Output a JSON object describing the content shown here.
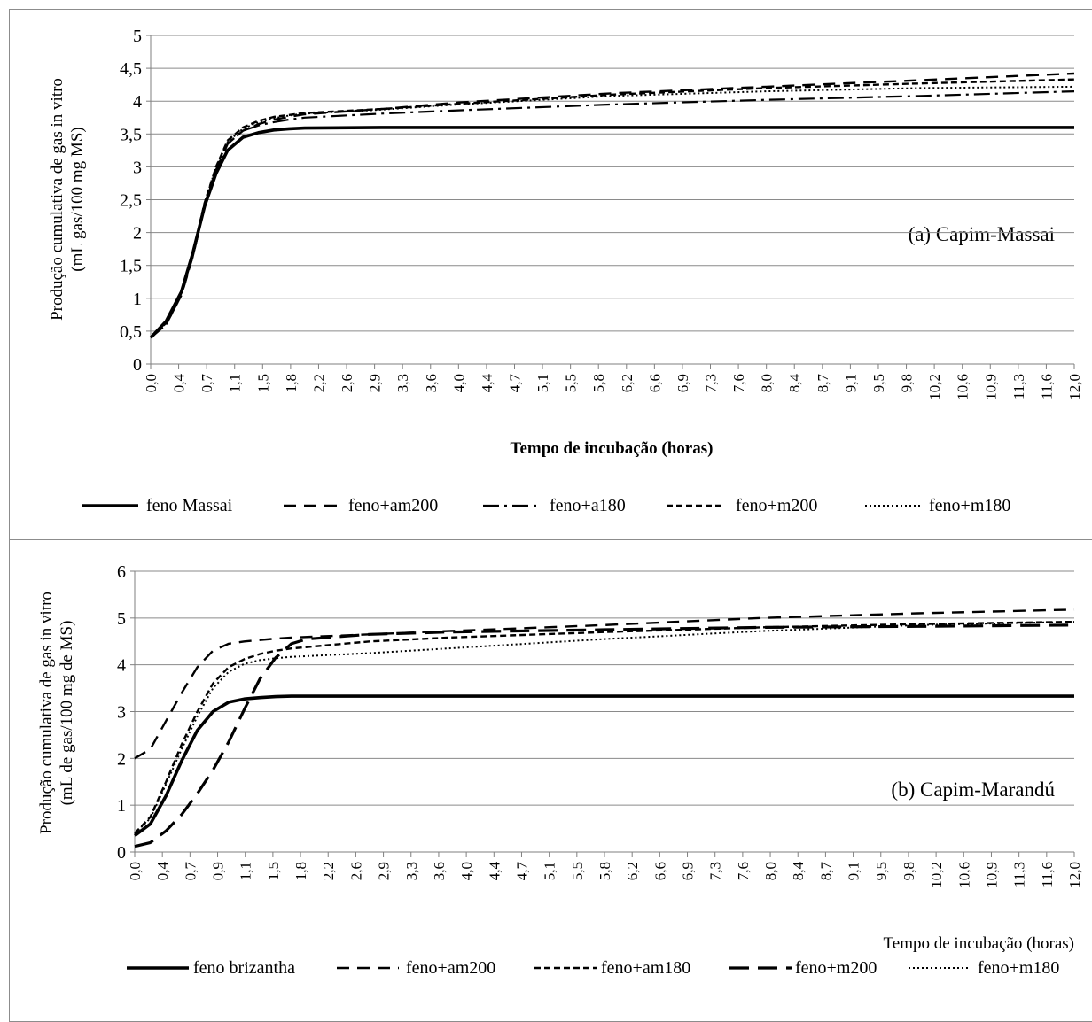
{
  "chart_data": [
    {
      "type": "line",
      "panel_label": "(a) Capim-Massai",
      "xlabel": "Tempo de incubação (horas)",
      "ylabel_line1": "Produção cumulativa de gas in vitro",
      "ylabel_line2": "(mL gas/100 mg MS)",
      "ylim": [
        0,
        5
      ],
      "yticks": [
        "0",
        "0,5",
        "1",
        "1,5",
        "2",
        "2,5",
        "3",
        "3,5",
        "4",
        "4,5",
        "5"
      ],
      "xlim": [
        0,
        12
      ],
      "xticks": [
        "0,0",
        "0,4",
        "0,7",
        "1,1",
        "1,5",
        "1,8",
        "2,2",
        "2,6",
        "2,9",
        "3,3",
        "3,6",
        "4,0",
        "4,4",
        "4,7",
        "5,1",
        "5,5",
        "5,8",
        "6,2",
        "6,6",
        "6,9",
        "7,3",
        "7,6",
        "8,0",
        "8,4",
        "8,7",
        "9,1",
        "9,5",
        "9,8",
        "10,2",
        "10,6",
        "10,9",
        "11,3",
        "11,6",
        "12,0"
      ],
      "grid": "horizontal",
      "legend_position": "bottom",
      "series": [
        {
          "name": "feno Massai",
          "style": "solid-thick",
          "x": [
            0,
            0.2,
            0.4,
            0.55,
            0.7,
            0.85,
            1.0,
            1.2,
            1.4,
            1.6,
            1.8,
            2.0,
            3,
            4,
            6,
            8,
            10,
            12
          ],
          "y": [
            0.4,
            0.65,
            1.1,
            1.7,
            2.4,
            2.9,
            3.25,
            3.45,
            3.52,
            3.56,
            3.58,
            3.59,
            3.6,
            3.6,
            3.6,
            3.6,
            3.6,
            3.6
          ]
        },
        {
          "name": "feno+am200",
          "style": "dash-long",
          "x": [
            0,
            0.2,
            0.4,
            0.55,
            0.7,
            0.85,
            1.0,
            1.2,
            1.4,
            1.6,
            1.8,
            2.0,
            3,
            4,
            6,
            8,
            10,
            12
          ],
          "y": [
            0.4,
            0.6,
            1.05,
            1.65,
            2.4,
            2.95,
            3.35,
            3.55,
            3.65,
            3.72,
            3.76,
            3.8,
            3.88,
            3.98,
            4.12,
            4.22,
            4.32,
            4.42
          ]
        },
        {
          "name": "feno+a180",
          "style": "dash-dot",
          "x": [
            0,
            0.2,
            0.4,
            0.55,
            0.7,
            0.85,
            1.0,
            1.2,
            1.4,
            1.6,
            1.8,
            2.0,
            3,
            4,
            6,
            8,
            10,
            12
          ],
          "y": [
            0.4,
            0.6,
            1.05,
            1.65,
            2.4,
            2.95,
            3.35,
            3.55,
            3.63,
            3.68,
            3.72,
            3.75,
            3.81,
            3.86,
            3.95,
            4.02,
            4.08,
            4.15
          ]
        },
        {
          "name": "feno+m200",
          "style": "dash-short",
          "x": [
            0,
            0.2,
            0.4,
            0.55,
            0.7,
            0.85,
            1.0,
            1.2,
            1.4,
            1.6,
            1.8,
            2.0,
            3,
            4,
            6,
            8,
            10,
            12
          ],
          "y": [
            0.4,
            0.62,
            1.1,
            1.7,
            2.45,
            3.0,
            3.4,
            3.6,
            3.7,
            3.76,
            3.79,
            3.82,
            3.88,
            3.96,
            4.1,
            4.2,
            4.27,
            4.33
          ]
        },
        {
          "name": "feno+m180",
          "style": "dotted",
          "x": [
            0,
            0.2,
            0.4,
            0.55,
            0.7,
            0.85,
            1.0,
            1.2,
            1.4,
            1.6,
            1.8,
            2.0,
            3,
            4,
            6,
            8,
            10,
            12
          ],
          "y": [
            0.4,
            0.62,
            1.1,
            1.7,
            2.45,
            3.0,
            3.38,
            3.58,
            3.68,
            3.74,
            3.78,
            3.81,
            3.87,
            3.95,
            4.08,
            4.15,
            4.2,
            4.22
          ]
        }
      ]
    },
    {
      "type": "line",
      "panel_label": "(b) Capim-Marandú",
      "xlabel": "Tempo de incubação (horas)",
      "ylabel_line1": "Produção cumulativa de gas in vitro",
      "ylabel_line2": "(mL de gas/100 mg de MS)",
      "ylim": [
        0,
        6
      ],
      "yticks": [
        "0",
        "1",
        "2",
        "3",
        "4",
        "5",
        "6"
      ],
      "xlim": [
        0,
        12
      ],
      "xticks": [
        "0,0",
        "0,4",
        "0,7",
        "0,9",
        "1,1",
        "1,5",
        "1,8",
        "2,2",
        "2,6",
        "2,9",
        "3,3",
        "3,6",
        "4,0",
        "4,4",
        "4,7",
        "5,1",
        "5,5",
        "5,8",
        "6,2",
        "6,6",
        "6,9",
        "7,3",
        "7,6",
        "8,0",
        "8,4",
        "8,7",
        "9,1",
        "9,5",
        "9,8",
        "10,2",
        "10,6",
        "10,9",
        "11,3",
        "11,6",
        "12,0"
      ],
      "grid": "horizontal",
      "legend_position": "bottom",
      "series": [
        {
          "name": "feno brizantha",
          "style": "solid-thick",
          "x": [
            0,
            0.2,
            0.4,
            0.6,
            0.8,
            1.0,
            1.2,
            1.4,
            1.6,
            1.8,
            2.0,
            3,
            6,
            9,
            12
          ],
          "y": [
            0.35,
            0.6,
            1.2,
            1.95,
            2.6,
            3.0,
            3.2,
            3.27,
            3.3,
            3.32,
            3.33,
            3.33,
            3.33,
            3.33,
            3.33
          ]
        },
        {
          "name": "feno+am200",
          "style": "dash-long",
          "x": [
            0,
            0.2,
            0.4,
            0.6,
            0.8,
            1.0,
            1.2,
            1.4,
            1.6,
            1.8,
            2.0,
            3,
            4,
            6,
            8,
            10,
            12
          ],
          "y": [
            2.0,
            2.2,
            2.8,
            3.4,
            3.95,
            4.3,
            4.45,
            4.5,
            4.53,
            4.56,
            4.58,
            4.65,
            4.72,
            4.85,
            5.0,
            5.1,
            5.18
          ]
        },
        {
          "name": "feno+am180",
          "style": "dash-short",
          "x": [
            0,
            0.2,
            0.4,
            0.6,
            0.8,
            1.0,
            1.2,
            1.4,
            1.6,
            1.8,
            2.0,
            3,
            4,
            6,
            8,
            10,
            12
          ],
          "y": [
            0.4,
            0.75,
            1.5,
            2.3,
            3.0,
            3.6,
            3.95,
            4.12,
            4.23,
            4.3,
            4.35,
            4.5,
            4.58,
            4.7,
            4.8,
            4.87,
            4.92
          ]
        },
        {
          "name": "feno+m200",
          "style": "dash-xlong",
          "x": [
            0,
            0.2,
            0.4,
            0.6,
            0.8,
            1.0,
            1.2,
            1.4,
            1.6,
            1.8,
            2.0,
            2.2,
            3,
            4,
            6,
            8,
            10,
            12
          ],
          "y": [
            0.12,
            0.2,
            0.45,
            0.8,
            1.25,
            1.75,
            2.35,
            3.05,
            3.7,
            4.15,
            4.45,
            4.55,
            4.65,
            4.7,
            4.75,
            4.8,
            4.82,
            4.85
          ]
        },
        {
          "name": "feno+m180",
          "style": "dotted",
          "x": [
            0,
            0.2,
            0.4,
            0.6,
            0.8,
            1.0,
            1.2,
            1.4,
            1.6,
            1.8,
            2.0,
            3,
            4,
            6,
            8,
            10,
            12
          ],
          "y": [
            0.4,
            0.72,
            1.45,
            2.2,
            2.9,
            3.5,
            3.85,
            4.02,
            4.1,
            4.14,
            4.17,
            4.25,
            4.35,
            4.55,
            4.72,
            4.85,
            4.92
          ]
        }
      ]
    }
  ]
}
